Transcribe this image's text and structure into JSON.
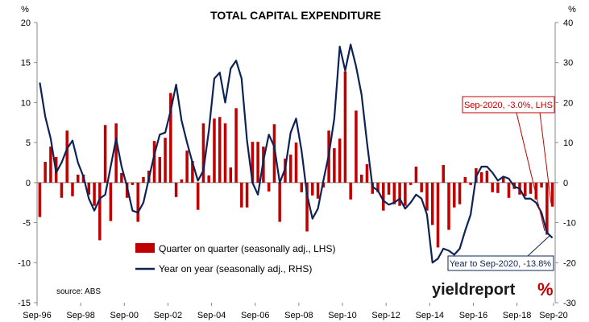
{
  "chart_data": {
    "type": "bar+line",
    "title": "TOTAL CAPITAL EXPENDITURE",
    "left_axis": {
      "unit": "%",
      "range": [
        -15,
        20
      ],
      "ticks": [
        "20",
        "15",
        "10",
        "5",
        "0",
        "-5",
        "-10",
        "-15"
      ]
    },
    "right_axis": {
      "unit": "%",
      "range": [
        -30,
        40
      ],
      "ticks": [
        "40",
        "30",
        "20",
        "10",
        "0",
        "-10",
        "-20",
        "-30"
      ]
    },
    "x_ticks": [
      "Sep-96",
      "Sep-98",
      "Sep-00",
      "Sep-02",
      "Sep-04",
      "Sep-06",
      "Sep-08",
      "Sep-10",
      "Sep-12",
      "Sep-14",
      "Sep-16",
      "Sep-18",
      "Sep-20"
    ],
    "series": [
      {
        "name": "Quarter on quarter (seasonally adj., LHS)",
        "kind": "bar",
        "axis": "left",
        "color": "#c00000",
        "values": [
          -4.3,
          2.6,
          4.5,
          3.2,
          -1.9,
          6.5,
          -1.7,
          1.0,
          1.0,
          -1.5,
          -2.9,
          -7.2,
          7.2,
          -4.8,
          7.4,
          1.2,
          -1.9,
          -0.3,
          -4.9,
          0.7,
          1.5,
          5.2,
          3.2,
          5.6,
          11.2,
          -1.8,
          0.4,
          4.0,
          2.7,
          -3.4,
          7.4,
          0.9,
          8.0,
          8.2,
          7.4,
          1.9,
          9.3,
          -3.1,
          -3.1,
          5.1,
          5.1,
          4.5,
          -1.1,
          7.3,
          -4.9,
          3.0,
          3.5,
          5.0,
          -1.2,
          -6.1,
          -1.6,
          -2.0,
          -0.6,
          6.5,
          4.3,
          5.5,
          13.9,
          -2.1,
          9.0,
          1.0,
          2.3,
          -1.4,
          -1.2,
          -3.5,
          -1.5,
          -2.7,
          -2.9,
          -2.9,
          -0.3,
          2.0,
          -1.2,
          -3.5,
          -5.3,
          -8.1,
          2.2,
          -5.9,
          -3.1,
          -2.7,
          0.7,
          -0.3,
          1.8,
          1.3,
          1.5,
          -1.2,
          -1.3,
          0.7,
          -1.9,
          -0.8,
          -1.5,
          -1.7,
          -1.4,
          -2.1,
          -0.6,
          -6.5,
          -3.0
        ]
      },
      {
        "name": "Year on year (seasonally adj., RHS)",
        "kind": "line",
        "axis": "right",
        "color": "#0d2356",
        "values": [
          25.0,
          16.5,
          11.0,
          2.5,
          5.0,
          8.5,
          10.5,
          5.0,
          1.5,
          -4.0,
          -7.0,
          -4.0,
          -3.0,
          4.0,
          11.0,
          4.0,
          -1.0,
          -7.0,
          -7.5,
          -5.0,
          1.0,
          7.0,
          12.0,
          12.5,
          18.0,
          24.5,
          15.5,
          10.0,
          5.0,
          0.5,
          3.0,
          13.0,
          26.0,
          27.5,
          20.0,
          28.5,
          30.5,
          26.0,
          10.5,
          0.0,
          -3.0,
          5.5,
          12.0,
          9.0,
          0.0,
          3.5,
          12.5,
          16.0,
          8.0,
          -3.0,
          -9.0,
          -6.5,
          0.5,
          7.0,
          16.0,
          34.0,
          28.0,
          34.5,
          29.0,
          22.0,
          10.0,
          -1.0,
          -2.0,
          -4.5,
          -5.5,
          -5.0,
          -4.0,
          -6.5,
          -5.0,
          -3.0,
          -4.0,
          -8.0,
          -20.0,
          -19.0,
          -16.5,
          -17.0,
          -18.0,
          -16.5,
          -12.0,
          -8.0,
          1.5,
          4.0,
          4.0,
          2.5,
          0.5,
          1.5,
          1.0,
          -1.0,
          -1.5,
          -4.0,
          -4.0,
          -5.0,
          -7.5,
          -12.5,
          -13.8
        ]
      }
    ],
    "annotations": [
      {
        "text": "Sep-2020, -3.0%, LHS",
        "color": "#c00000"
      },
      {
        "text": "Year to Sep-2020, -13.8%",
        "color": "#0d2356"
      }
    ],
    "legend_position": "lower-left inside plot",
    "source": "source: ABS",
    "brand": {
      "name": "yieldreport",
      "symbol": "%"
    },
    "grid": false
  }
}
